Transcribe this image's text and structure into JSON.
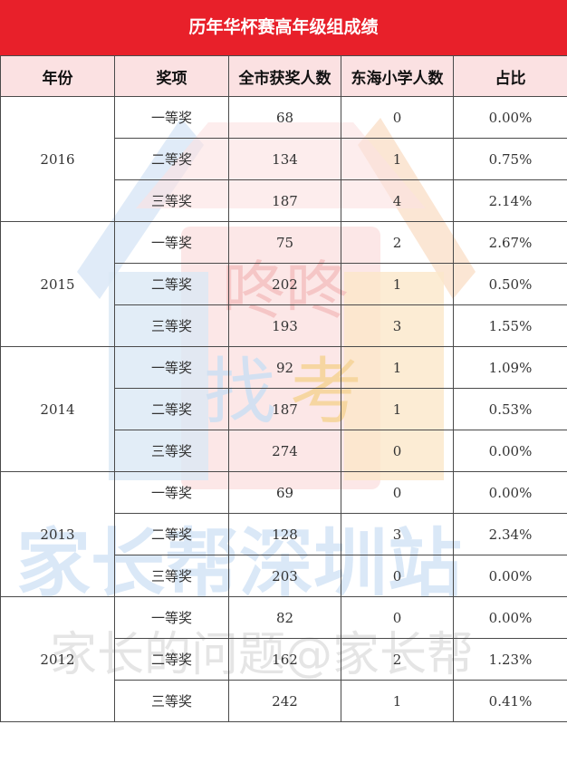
{
  "title": "历年华杯赛高年级组成绩",
  "headers": [
    "年份",
    "奖项",
    "全市获奖人数",
    "东海小学人数",
    "占比"
  ],
  "groups": [
    {
      "year": "2016",
      "rows": [
        {
          "award": "一等奖",
          "total": "68",
          "school": "0",
          "ratio": "0.00%"
        },
        {
          "award": "二等奖",
          "total": "134",
          "school": "1",
          "ratio": "0.75%"
        },
        {
          "award": "三等奖",
          "total": "187",
          "school": "4",
          "ratio": "2.14%"
        }
      ]
    },
    {
      "year": "2015",
      "rows": [
        {
          "award": "一等奖",
          "total": "75",
          "school": "2",
          "ratio": "2.67%"
        },
        {
          "award": "二等奖",
          "total": "202",
          "school": "1",
          "ratio": "0.50%"
        },
        {
          "award": "三等奖",
          "total": "193",
          "school": "3",
          "ratio": "1.55%"
        }
      ]
    },
    {
      "year": "2014",
      "rows": [
        {
          "award": "一等奖",
          "total": "92",
          "school": "1",
          "ratio": "1.09%"
        },
        {
          "award": "二等奖",
          "total": "187",
          "school": "1",
          "ratio": "0.53%"
        },
        {
          "award": "三等奖",
          "total": "274",
          "school": "0",
          "ratio": "0.00%"
        }
      ]
    },
    {
      "year": "2013",
      "rows": [
        {
          "award": "一等奖",
          "total": "69",
          "school": "0",
          "ratio": "0.00%"
        },
        {
          "award": "二等奖",
          "total": "128",
          "school": "3",
          "ratio": "2.34%"
        },
        {
          "award": "三等奖",
          "total": "203",
          "school": "0",
          "ratio": "0.00%"
        }
      ]
    },
    {
      "year": "2012",
      "rows": [
        {
          "award": "一等奖",
          "total": "82",
          "school": "0",
          "ratio": "0.00%"
        },
        {
          "award": "二等奖",
          "total": "162",
          "school": "2",
          "ratio": "1.23%"
        },
        {
          "award": "三等奖",
          "total": "242",
          "school": "1",
          "ratio": "0.41%"
        }
      ]
    }
  ],
  "watermark": {
    "logo_text": [
      "咚咚",
      "找",
      "考"
    ],
    "brand_text": "家长帮深圳站",
    "sub_text": "家长的问题@家长帮"
  },
  "colors": {
    "title_bg": "#e8202a",
    "header_bg": "#fbe1e2",
    "border": "#4a4a4a"
  }
}
